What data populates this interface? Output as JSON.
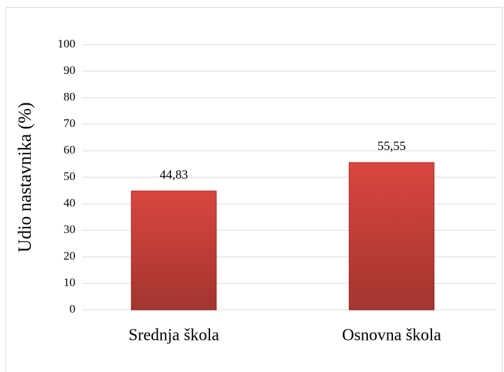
{
  "chart_data": {
    "type": "bar",
    "y_label": "Udio nastavnika (%)",
    "categories": [
      "Srednja škola",
      "Osnovna škola"
    ],
    "values": [
      44.83,
      55.55
    ],
    "value_labels": [
      "44,83",
      "55,55"
    ],
    "color": "#d9463f",
    "ylim": [
      0,
      100
    ],
    "yticks": [
      0,
      10,
      20,
      30,
      40,
      50,
      60,
      70,
      80,
      90,
      100
    ],
    "grid": true
  }
}
